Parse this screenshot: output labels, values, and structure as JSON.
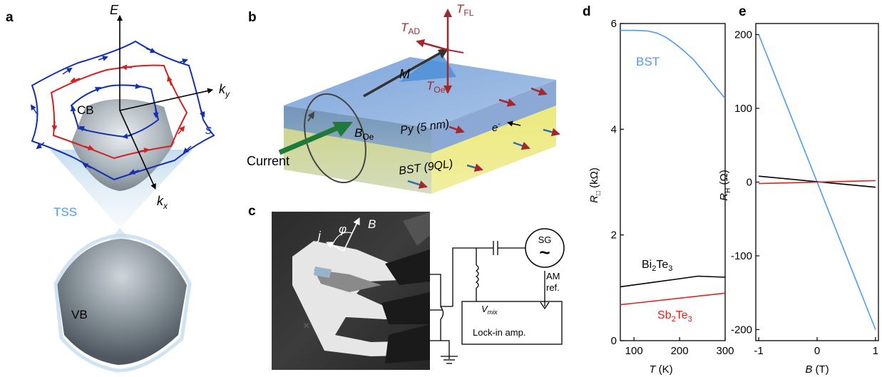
{
  "panels": {
    "a": {
      "letter": "a",
      "axis_e": "E",
      "axis_ky": "k",
      "axis_ky_sub": "y",
      "axis_kx": "k",
      "axis_kx_sub": "x",
      "cb": "CB",
      "vb": "VB",
      "tss": "TSS",
      "spin": "s"
    },
    "b": {
      "letter": "b",
      "t_fl": "T",
      "t_fl_sub": "FL",
      "t_ad": "T",
      "t_ad_sub": "AD",
      "t_oe": "T",
      "t_oe_sub": "Oe",
      "m": "M",
      "b_oe": "B",
      "b_oe_sub": "Oe",
      "py": "Py (5 nm)",
      "bst": "BST (9QL)",
      "electron": "e",
      "electron_sup": "-",
      "current": "Current"
    },
    "c": {
      "letter": "c",
      "j": "j",
      "phi": "φ",
      "b": "B",
      "sg": "SG",
      "sg_symbol": "~",
      "am": "AM",
      "ref": "ref.",
      "vmix": "V",
      "vmix_sub": "mix",
      "lockin": "Lock-in amp."
    },
    "d": {
      "letter": "d"
    },
    "e": {
      "letter": "e"
    }
  },
  "colors": {
    "bst": "#4e9bf0",
    "bi2te3": "#000000",
    "sb2te3": "#e32020",
    "torque": "#a3282e",
    "spin_blue": "#1430b0",
    "spin_red": "#d42020"
  },
  "chart_data": [
    {
      "panel": "d",
      "type": "line",
      "xlabel": "T (K)",
      "ylabel": "R□ (kΩ)",
      "xlim": [
        70,
        300
      ],
      "ylim": [
        0,
        6
      ],
      "xticks": [
        100,
        200,
        300
      ],
      "yticks": [
        0,
        2,
        4,
        6
      ],
      "grid": false,
      "series": [
        {
          "name": "BST",
          "color": "#4e9bf0",
          "x": [
            70,
            100,
            130,
            150,
            170,
            190,
            210,
            230,
            250,
            270,
            300
          ],
          "y": [
            5.87,
            5.87,
            5.86,
            5.82,
            5.74,
            5.62,
            5.48,
            5.32,
            5.12,
            4.9,
            4.58
          ]
        },
        {
          "name": "Bi2Te3",
          "color": "#000000",
          "x": [
            70,
            130,
            190,
            240,
            300
          ],
          "y": [
            1.02,
            1.09,
            1.16,
            1.22,
            1.2
          ]
        },
        {
          "name": "Sb2Te3",
          "color": "#e32020",
          "x": [
            70,
            300
          ],
          "y": [
            0.68,
            0.9
          ]
        }
      ],
      "labels": {
        "bst": "BST",
        "bi": "Bi",
        "bi_sub": "2",
        "bi_te": "Te",
        "bi_te_sub": "3",
        "sb": "Sb",
        "sb_sub": "2",
        "sb_te": "Te",
        "sb_te_sub": "3",
        "xlabel_main": "T",
        "xlabel_unit": " (K)",
        "ylabel_main": "R",
        "ylabel_sub": "□",
        "ylabel_unit": " (kΩ)"
      }
    },
    {
      "panel": "e",
      "type": "line",
      "xlabel": "B (T)",
      "ylabel": "R_H (Ω)",
      "xlim": [
        -1.05,
        1.05
      ],
      "ylim": [
        -215,
        215
      ],
      "xticks": [
        -1,
        0,
        1
      ],
      "yticks": [
        -200,
        -100,
        0,
        100,
        200
      ],
      "grid": false,
      "series": [
        {
          "name": "BST",
          "color": "#4e9bf0",
          "x": [
            -1,
            1
          ],
          "y": [
            200,
            -200
          ]
        },
        {
          "name": "Bi2Te3",
          "color": "#000000",
          "x": [
            -1,
            1
          ],
          "y": [
            8,
            -7
          ]
        },
        {
          "name": "Sb2Te3",
          "color": "#e32020",
          "x": [
            -1,
            1
          ],
          "y": [
            -2,
            2
          ]
        }
      ],
      "labels": {
        "xlabel_main": "B",
        "xlabel_unit": " (T)",
        "ylabel_main": "R",
        "ylabel_sub": "H",
        "ylabel_unit": " (Ω)"
      }
    }
  ]
}
